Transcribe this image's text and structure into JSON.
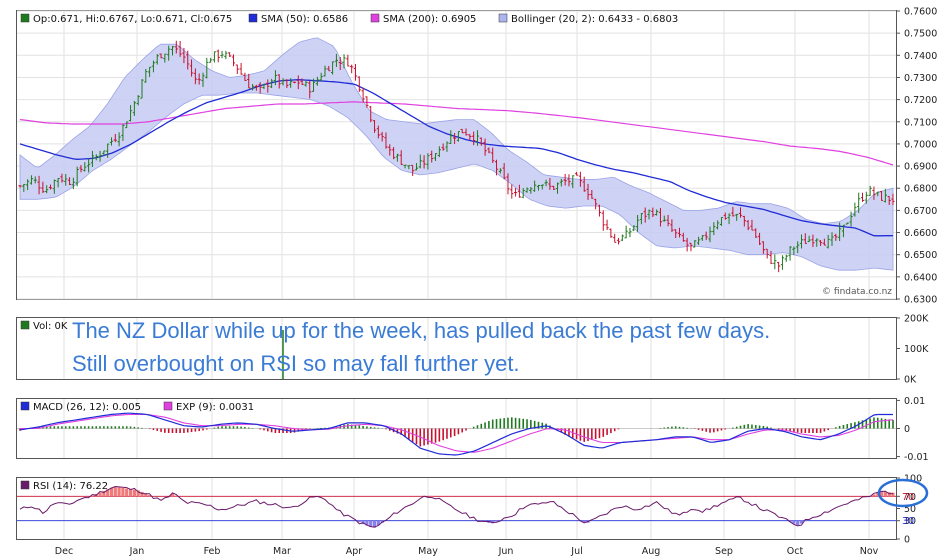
{
  "chart_data": {
    "type": "candlestick",
    "watermark": "© findata.co.nz",
    "months": [
      "Dec",
      "Jan",
      "Feb",
      "Mar",
      "Apr",
      "May",
      "Jun",
      "Jul",
      "Aug",
      "Sep",
      "Oct",
      "Nov"
    ],
    "price": {
      "legend": {
        "ohlc": "Op:0.671, Hi:0.6767, Lo:0.671, Cl:0.675",
        "sma50": "SMA (50): 0.6586",
        "sma200": "SMA (200): 0.6905",
        "bollinger": "Bollinger (20, 2): 0.6433 - 0.6803"
      },
      "ylim": [
        0.63,
        0.76
      ],
      "yticks": [
        "0.7600",
        "0.7500",
        "0.7400",
        "0.7300",
        "0.7200",
        "0.7100",
        "0.7000",
        "0.6900",
        "0.6800",
        "0.6700",
        "0.6600",
        "0.6500",
        "0.6400",
        "0.6300"
      ],
      "close_anchors": [
        0.681,
        0.684,
        0.679,
        0.685,
        0.683,
        0.69,
        0.694,
        0.7,
        0.706,
        0.718,
        0.733,
        0.74,
        0.744,
        0.739,
        0.727,
        0.739,
        0.741,
        0.736,
        0.727,
        0.724,
        0.73,
        0.726,
        0.728,
        0.725,
        0.733,
        0.738,
        0.737,
        0.724,
        0.708,
        0.698,
        0.693,
        0.688,
        0.692,
        0.697,
        0.703,
        0.706,
        0.703,
        0.695,
        0.686,
        0.676,
        0.68,
        0.683,
        0.68,
        0.683,
        0.684,
        0.678,
        0.666,
        0.656,
        0.659,
        0.667,
        0.67,
        0.664,
        0.658,
        0.653,
        0.657,
        0.665,
        0.668,
        0.667,
        0.66,
        0.649,
        0.645,
        0.653,
        0.656,
        0.658,
        0.655,
        0.661,
        0.672,
        0.679,
        0.676,
        0.675
      ],
      "sma50_anchors": [
        0.7,
        0.6975,
        0.695,
        0.693,
        0.6935,
        0.696,
        0.7,
        0.705,
        0.71,
        0.7145,
        0.7185,
        0.721,
        0.7235,
        0.7265,
        0.7285,
        0.729,
        0.7285,
        0.728,
        0.727,
        0.723,
        0.718,
        0.713,
        0.708,
        0.7045,
        0.702,
        0.7,
        0.699,
        0.6985,
        0.698,
        0.696,
        0.693,
        0.6905,
        0.6885,
        0.687,
        0.685,
        0.683,
        0.679,
        0.676,
        0.6735,
        0.672,
        0.6705,
        0.668,
        0.6655,
        0.664,
        0.663,
        0.662,
        0.6585,
        0.6586
      ],
      "sma200_anchors": [
        0.711,
        0.7095,
        0.709,
        0.709,
        0.709,
        0.71,
        0.712,
        0.714,
        0.716,
        0.717,
        0.718,
        0.718,
        0.7185,
        0.719,
        0.7185,
        0.718,
        0.717,
        0.716,
        0.7155,
        0.715,
        0.714,
        0.7128,
        0.7115,
        0.71,
        0.7085,
        0.707,
        0.7055,
        0.704,
        0.7025,
        0.701,
        0.699,
        0.698,
        0.6965,
        0.694,
        0.6905
      ],
      "bollinger_upper_anchors": [
        0.695,
        0.689,
        0.695,
        0.702,
        0.708,
        0.718,
        0.73,
        0.738,
        0.745,
        0.745,
        0.738,
        0.733,
        0.73,
        0.731,
        0.733,
        0.74,
        0.746,
        0.748,
        0.744,
        0.728,
        0.715,
        0.711,
        0.71,
        0.709,
        0.71,
        0.711,
        0.711,
        0.705,
        0.697,
        0.692,
        0.686,
        0.685,
        0.684,
        0.684,
        0.685,
        0.681,
        0.678,
        0.674,
        0.67,
        0.67,
        0.671,
        0.674,
        0.673,
        0.673,
        0.671,
        0.666,
        0.664,
        0.665,
        0.67,
        0.678,
        0.68
      ],
      "bollinger_lower_anchors": [
        0.675,
        0.675,
        0.676,
        0.681,
        0.688,
        0.693,
        0.699,
        0.705,
        0.712,
        0.718,
        0.722,
        0.722,
        0.723,
        0.723,
        0.722,
        0.721,
        0.72,
        0.717,
        0.712,
        0.704,
        0.694,
        0.688,
        0.686,
        0.687,
        0.689,
        0.691,
        0.688,
        0.682,
        0.675,
        0.672,
        0.671,
        0.672,
        0.672,
        0.668,
        0.66,
        0.654,
        0.653,
        0.654,
        0.653,
        0.652,
        0.65,
        0.65,
        0.651,
        0.649,
        0.645,
        0.643,
        0.643,
        0.644,
        0.643
      ]
    },
    "volume": {
      "legend": "Vol: 0K",
      "yticks": [
        "200K",
        "100K",
        "0K"
      ],
      "ylim": [
        0,
        200
      ]
    },
    "macd": {
      "legend_macd": "MACD (26, 12): 0.005",
      "legend_exp": "EXP (9): 0.0031",
      "yticks": [
        "0.01",
        "0",
        "-0.01"
      ],
      "ylim": [
        -0.0105,
        0.0105
      ],
      "macd_anchors": [
        -0.0005,
        0.0005,
        0.002,
        0.003,
        0.004,
        0.005,
        0.0055,
        0.005,
        0.003,
        0.001,
        0.0005,
        0.0015,
        0.002,
        0.0015,
        0.0,
        -0.001,
        -0.0005,
        0.0,
        0.002,
        0.002,
        0.001,
        -0.002,
        -0.007,
        -0.009,
        -0.0095,
        -0.008,
        -0.005,
        -0.002,
        0.0,
        0.001,
        -0.002,
        -0.006,
        -0.007,
        -0.005,
        -0.0045,
        -0.004,
        -0.003,
        -0.003,
        -0.005,
        -0.004,
        -0.001,
        0.0,
        -0.001,
        -0.003,
        -0.004,
        -0.002,
        0.001,
        0.005,
        0.005
      ],
      "signal_anchors": [
        0.0,
        0.0,
        0.0015,
        0.0025,
        0.0035,
        0.0045,
        0.005,
        0.005,
        0.004,
        0.002,
        0.001,
        0.001,
        0.0015,
        0.0015,
        0.001,
        0.0,
        -0.0005,
        -0.0002,
        0.001,
        0.0015,
        0.001,
        -0.0005,
        -0.003,
        -0.006,
        -0.008,
        -0.0085,
        -0.007,
        -0.0045,
        -0.002,
        0.0,
        -0.0005,
        -0.003,
        -0.005,
        -0.005,
        -0.0045,
        -0.004,
        -0.0035,
        -0.003,
        -0.004,
        -0.004,
        -0.002,
        -0.0005,
        -0.0005,
        -0.002,
        -0.003,
        -0.0025,
        -0.0005,
        0.0025,
        0.0031
      ]
    },
    "rsi": {
      "legend": "RSI (14): 76.22",
      "yticks": [
        "100",
        "70",
        "50",
        "30",
        "0"
      ],
      "ylim": [
        0,
        100
      ],
      "marker_labels": [
        "70",
        "30"
      ],
      "rsi_anchors": [
        48,
        55,
        43,
        60,
        55,
        65,
        70,
        78,
        86,
        83,
        80,
        72,
        62,
        75,
        60,
        58,
        55,
        48,
        52,
        57,
        62,
        58,
        55,
        50,
        61,
        70,
        64,
        45,
        35,
        25,
        18,
        30,
        45,
        55,
        68,
        71,
        58,
        48,
        38,
        30,
        25,
        34,
        42,
        57,
        56,
        62,
        50,
        38,
        25,
        35,
        45,
        55,
        49,
        53,
        60,
        46,
        38,
        52,
        45,
        55,
        62,
        68,
        58,
        48,
        40,
        30,
        22,
        35,
        42,
        50,
        58,
        64,
        70,
        78,
        76
      ]
    }
  },
  "annotation": {
    "line1": "The NZ Dollar while up for the week, has pulled back the past few days.",
    "line2": "Still overbought on RSI so may fall further yet."
  }
}
